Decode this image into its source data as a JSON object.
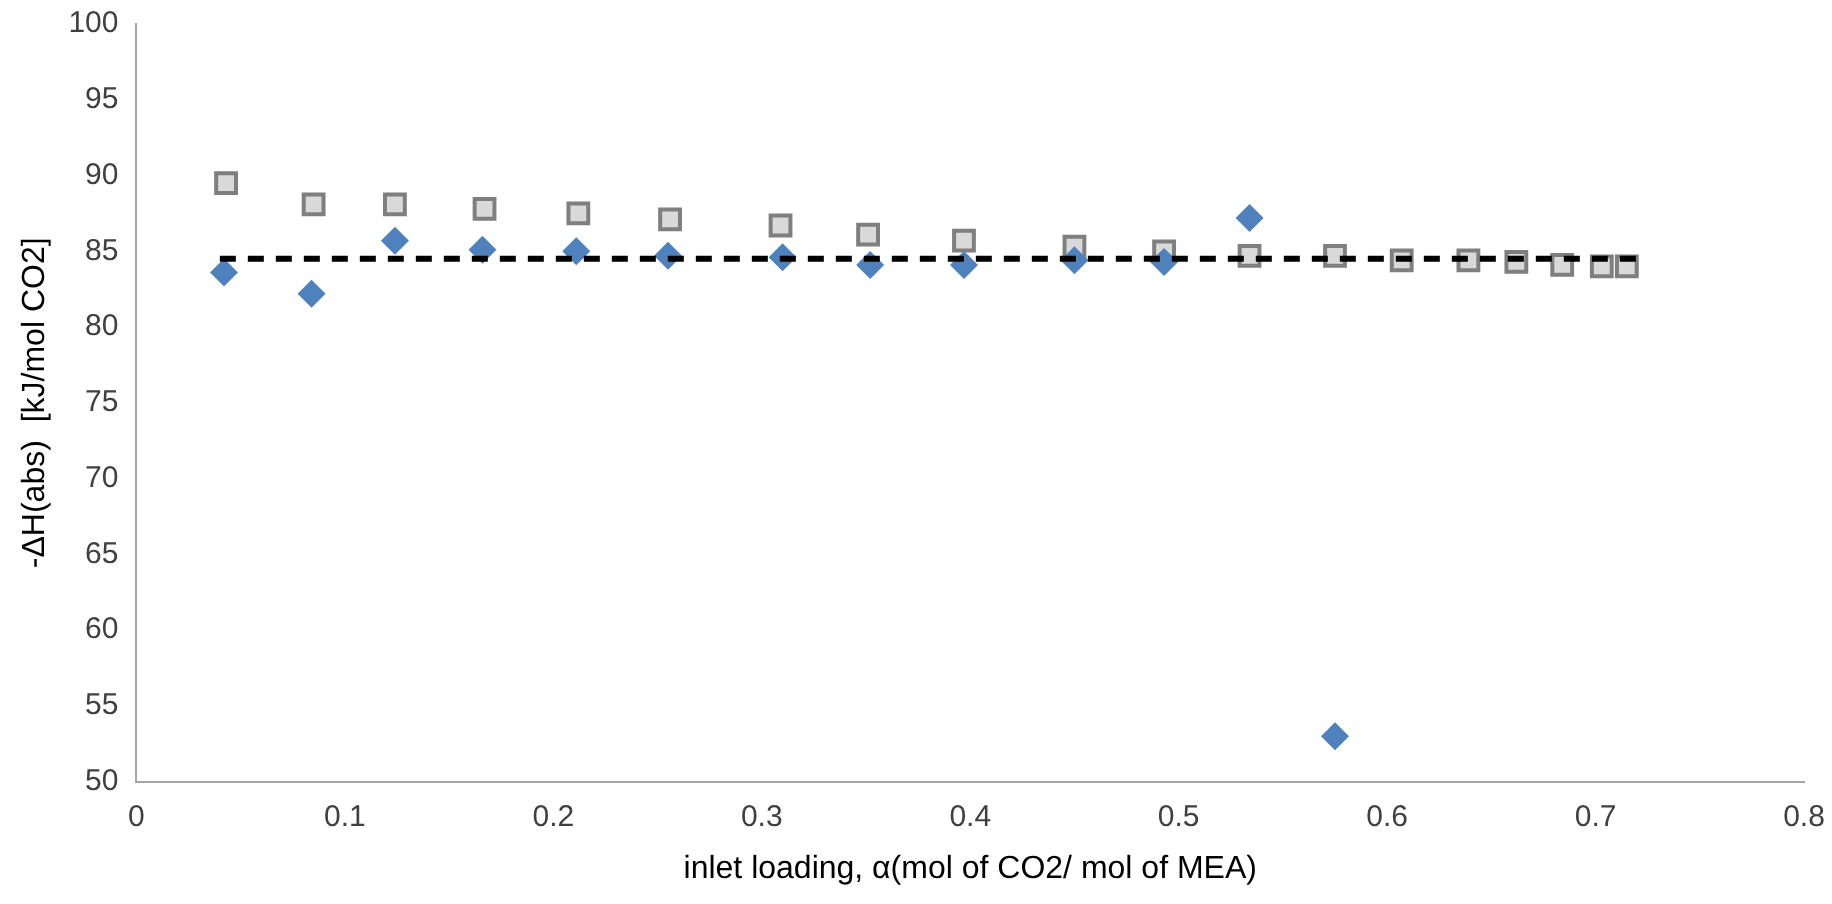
{
  "chart_data": {
    "type": "scatter",
    "xlabel": "inlet loading, α(mol of CO2/ mol of MEA)",
    "ylabel": "-ΔH(abs)  [kJ/mol CO2]",
    "xlim": [
      0,
      0.8
    ],
    "xticks": [
      0,
      0.1,
      0.2,
      0.3,
      0.4,
      0.5,
      0.6,
      0.7,
      0.8
    ],
    "ylim": [
      50,
      100
    ],
    "yticks": [
      50,
      55,
      60,
      65,
      70,
      75,
      80,
      85,
      90,
      95,
      100
    ],
    "grid": false,
    "legend": false,
    "series": [
      {
        "marker": "square",
        "color": "#d9d9d9",
        "x": [
          0.043,
          0.085,
          0.124,
          0.167,
          0.212,
          0.256,
          0.309,
          0.351,
          0.397,
          0.45,
          0.493,
          0.534,
          0.575,
          0.607,
          0.639,
          0.662,
          0.684,
          0.703,
          0.715
        ],
        "values": [
          89.5,
          88.1,
          88.1,
          87.8,
          87.5,
          87.1,
          86.7,
          86.1,
          85.7,
          85.3,
          85.0,
          84.7,
          84.7,
          84.4,
          84.4,
          84.3,
          84.1,
          84.0,
          84.0
        ]
      },
      {
        "marker": "diamond",
        "color": "#4f81bd",
        "x": [
          0.042,
          0.084,
          0.124,
          0.166,
          0.211,
          0.255,
          0.31,
          0.352,
          0.397,
          0.45,
          0.493,
          0.534,
          0.575
        ],
        "values": [
          83.6,
          82.2,
          85.7,
          85.1,
          85.0,
          84.7,
          84.6,
          84.1,
          84.1,
          84.4,
          84.3,
          87.2,
          53.0
        ]
      },
      {
        "type": "line",
        "line_style": "dashed",
        "marker": "none",
        "color": "#000000",
        "x": [
          0.04,
          0.72
        ],
        "values": [
          84.5,
          84.5
        ]
      }
    ]
  }
}
